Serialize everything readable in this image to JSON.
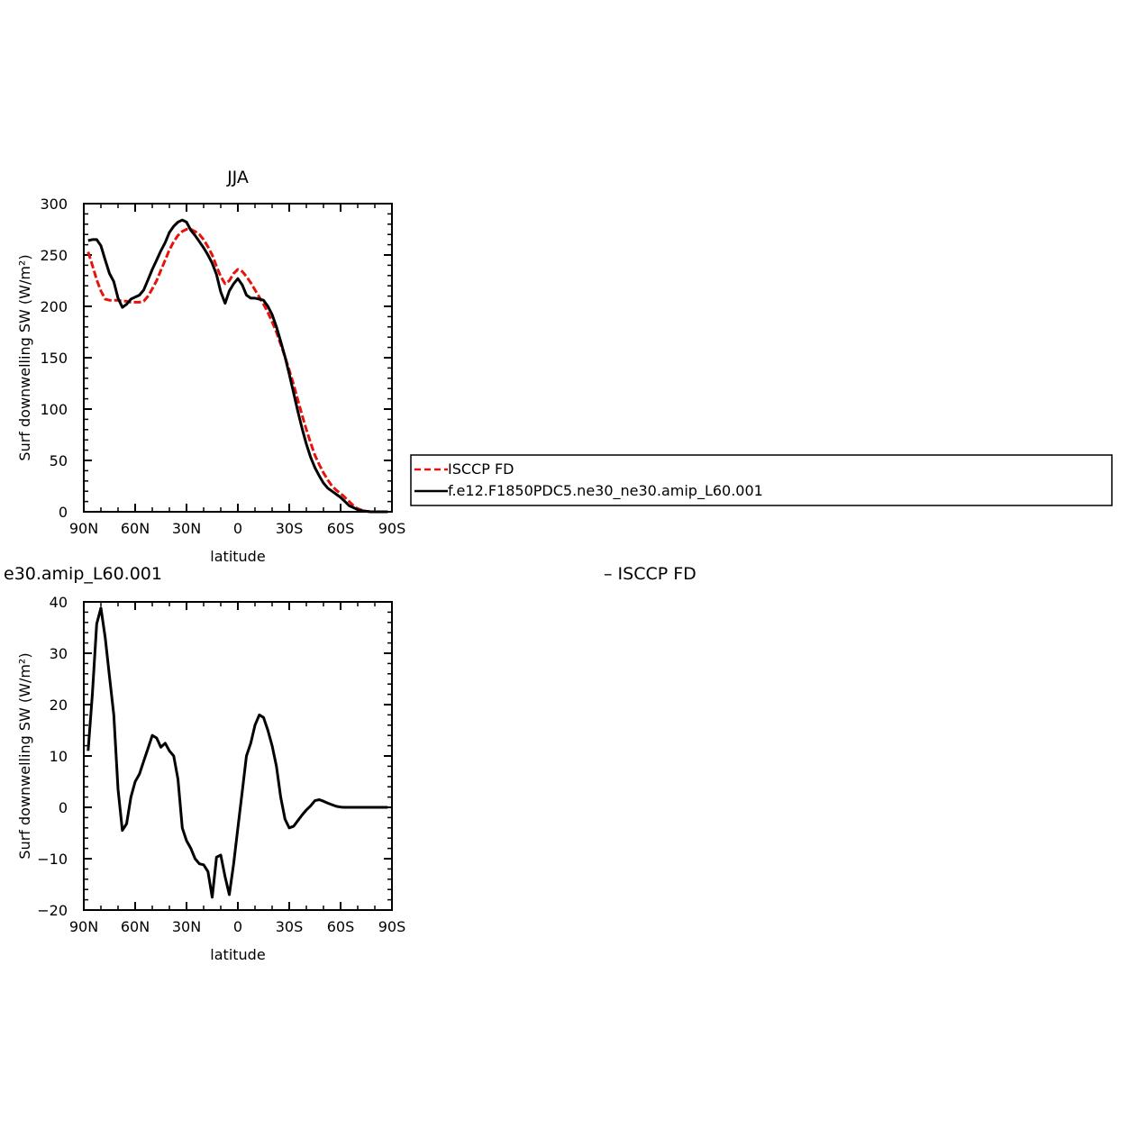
{
  "chart_data": [
    {
      "type": "line",
      "title": "JJA",
      "xlabel": "latitude",
      "ylabel": "Surf downwelling SW (W/m²)",
      "xlim": [
        90,
        -90
      ],
      "ylim": [
        0,
        300
      ],
      "xticks": [
        {
          "value": 90,
          "label": "90N"
        },
        {
          "value": 60,
          "label": "60N"
        },
        {
          "value": 30,
          "label": "30N"
        },
        {
          "value": 0,
          "label": "0"
        },
        {
          "value": -30,
          "label": "30S"
        },
        {
          "value": -60,
          "label": "60S"
        },
        {
          "value": -90,
          "label": "90S"
        }
      ],
      "yticks": [
        0,
        50,
        100,
        150,
        200,
        250,
        300
      ],
      "legend_position": "right",
      "series": [
        {
          "name": "ISCCP FD",
          "color": "#e8120c",
          "dash": "dashed",
          "points": [
            [
              87.5,
              253
            ],
            [
              85,
              240
            ],
            [
              82.5,
              226
            ],
            [
              80,
              215
            ],
            [
              77.5,
              207
            ],
            [
              75,
              206
            ],
            [
              72.5,
              206
            ],
            [
              70,
              206
            ],
            [
              67.5,
              205
            ],
            [
              65,
              205
            ],
            [
              62.5,
              204
            ],
            [
              60,
              204
            ],
            [
              57.5,
              204
            ],
            [
              55,
              205
            ],
            [
              52.5,
              210
            ],
            [
              50,
              217
            ],
            [
              47.5,
              225
            ],
            [
              45,
              235
            ],
            [
              42.5,
              245
            ],
            [
              40,
              255
            ],
            [
              37.5,
              263
            ],
            [
              35,
              269
            ],
            [
              32.5,
              273
            ],
            [
              30,
              275
            ],
            [
              27.5,
              275
            ],
            [
              25,
              273
            ],
            [
              22.5,
              270
            ],
            [
              20,
              265
            ],
            [
              17.5,
              258
            ],
            [
              15,
              250
            ],
            [
              12.5,
              239
            ],
            [
              10,
              229
            ],
            [
              7.5,
              222
            ],
            [
              5,
              225
            ],
            [
              2.5,
              232
            ],
            [
              0,
              236
            ],
            [
              -2.5,
              234
            ],
            [
              -5,
              229
            ],
            [
              -7.5,
              223
            ],
            [
              -10,
              216
            ],
            [
              -12.5,
              209
            ],
            [
              -15,
              202
            ],
            [
              -17.5,
              194
            ],
            [
              -20,
              185
            ],
            [
              -22.5,
              175
            ],
            [
              -25,
              163
            ],
            [
              -27.5,
              151
            ],
            [
              -30,
              138
            ],
            [
              -32.5,
              124
            ],
            [
              -35,
              109
            ],
            [
              -37.5,
              94
            ],
            [
              -40,
              80
            ],
            [
              -42.5,
              67
            ],
            [
              -45,
              55
            ],
            [
              -47.5,
              46
            ],
            [
              -50,
              38
            ],
            [
              -52.5,
              31
            ],
            [
              -55,
              25
            ],
            [
              -57.5,
              21
            ],
            [
              -60,
              18
            ],
            [
              -62.5,
              14
            ],
            [
              -65,
              10
            ],
            [
              -67.5,
              6
            ],
            [
              -70,
              3
            ],
            [
              -72.5,
              1.5
            ],
            [
              -75,
              0.5
            ],
            [
              -77.5,
              0
            ],
            [
              -80,
              0
            ],
            [
              -82.5,
              0
            ],
            [
              -85,
              0
            ],
            [
              -87.5,
              0
            ]
          ]
        },
        {
          "name": "f.e12.F1850PDC5.ne30_ne30.amip_L60.001",
          "color": "#000000",
          "dash": "solid",
          "points": [
            [
              87.5,
              264
            ],
            [
              85,
              265
            ],
            [
              82.5,
              265
            ],
            [
              80,
              259
            ],
            [
              77.5,
              245
            ],
            [
              75,
              232
            ],
            [
              72.5,
              224
            ],
            [
              70,
              208
            ],
            [
              67.5,
              199
            ],
            [
              65,
              202
            ],
            [
              62.5,
              207
            ],
            [
              60,
              209
            ],
            [
              57.5,
              211
            ],
            [
              55,
              216
            ],
            [
              52.5,
              226
            ],
            [
              50,
              236
            ],
            [
              47.5,
              245
            ],
            [
              45,
              254
            ],
            [
              42.5,
              262
            ],
            [
              40,
              272
            ],
            [
              37.5,
              278
            ],
            [
              35,
              282
            ],
            [
              32.5,
              284
            ],
            [
              30,
              282
            ],
            [
              27.5,
              274
            ],
            [
              25,
              269
            ],
            [
              22.5,
              263
            ],
            [
              20,
              257
            ],
            [
              17.5,
              250
            ],
            [
              15,
              242
            ],
            [
              12.5,
              231
            ],
            [
              10,
              214
            ],
            [
              7.5,
              203
            ],
            [
              5,
              215
            ],
            [
              2.5,
              222
            ],
            [
              0,
              227
            ],
            [
              -2.5,
              221
            ],
            [
              -5,
              211
            ],
            [
              -7.5,
              208
            ],
            [
              -10,
              208
            ],
            [
              -12.5,
              207
            ],
            [
              -15,
              206
            ],
            [
              -17.5,
              200
            ],
            [
              -20,
              192
            ],
            [
              -22.5,
              180
            ],
            [
              -25,
              166
            ],
            [
              -27.5,
              151
            ],
            [
              -30,
              134
            ],
            [
              -32.5,
              116
            ],
            [
              -35,
              98
            ],
            [
              -37.5,
              81
            ],
            [
              -40,
              66
            ],
            [
              -42.5,
              53
            ],
            [
              -45,
              43
            ],
            [
              -47.5,
              35
            ],
            [
              -50,
              28
            ],
            [
              -52.5,
              23
            ],
            [
              -55,
              20
            ],
            [
              -57.5,
              17
            ],
            [
              -60,
              14
            ],
            [
              -62.5,
              10
            ],
            [
              -65,
              6
            ],
            [
              -67.5,
              4
            ],
            [
              -70,
              2
            ],
            [
              -72.5,
              1
            ],
            [
              -75,
              0.5
            ],
            [
              -77.5,
              0
            ],
            [
              -80,
              0
            ],
            [
              -82.5,
              0
            ],
            [
              -85,
              0
            ],
            [
              -87.5,
              0
            ]
          ]
        }
      ]
    },
    {
      "type": "line",
      "title": "e30.amip_L60.001",
      "title_right": "– ISCCP FD",
      "xlabel": "latitude",
      "ylabel": "Surf downwelling SW (W/m²)",
      "xlim": [
        90,
        -90
      ],
      "ylim": [
        -20,
        40
      ],
      "xticks": [
        {
          "value": 90,
          "label": "90N"
        },
        {
          "value": 60,
          "label": "60N"
        },
        {
          "value": 30,
          "label": "30N"
        },
        {
          "value": 0,
          "label": "0"
        },
        {
          "value": -30,
          "label": "30S"
        },
        {
          "value": -60,
          "label": "60S"
        },
        {
          "value": -90,
          "label": "90S"
        }
      ],
      "yticks": [
        -20,
        -10,
        0,
        10,
        20,
        30,
        40
      ],
      "series": [
        {
          "color": "#000000",
          "dash": "solid",
          "points": [
            [
              87.5,
              11
            ],
            [
              85,
              22
            ],
            [
              82.5,
              35.7
            ],
            [
              80,
              38.8
            ],
            [
              77.5,
              33
            ],
            [
              75,
              25.5
            ],
            [
              72.5,
              18
            ],
            [
              70,
              3.5
            ],
            [
              67.5,
              -4.5
            ],
            [
              65,
              -3.2
            ],
            [
              62.5,
              2
            ],
            [
              60,
              5
            ],
            [
              57.5,
              6.5
            ],
            [
              55,
              9
            ],
            [
              52.5,
              11.5
            ],
            [
              50,
              14
            ],
            [
              47.5,
              13.5
            ],
            [
              45,
              11.7
            ],
            [
              42.5,
              12.5
            ],
            [
              40,
              11
            ],
            [
              37.5,
              10
            ],
            [
              35,
              5.5
            ],
            [
              32.5,
              -4
            ],
            [
              30,
              -6.5
            ],
            [
              27.5,
              -8
            ],
            [
              25,
              -10
            ],
            [
              22.5,
              -11
            ],
            [
              20,
              -11.2
            ],
            [
              17.5,
              -12.5
            ],
            [
              15,
              -17.5
            ],
            [
              12.5,
              -9.7
            ],
            [
              10,
              -9.3
            ],
            [
              7.5,
              -13.5
            ],
            [
              5,
              -17
            ],
            [
              2.5,
              -11
            ],
            [
              0,
              -4
            ],
            [
              -2.5,
              3
            ],
            [
              -5,
              10
            ],
            [
              -7.5,
              12.5
            ],
            [
              -10,
              16
            ],
            [
              -12.5,
              18
            ],
            [
              -15,
              17.5
            ],
            [
              -17.5,
              15
            ],
            [
              -20,
              12
            ],
            [
              -22.5,
              8
            ],
            [
              -25,
              2
            ],
            [
              -27.5,
              -2.3
            ],
            [
              -30,
              -4
            ],
            [
              -32.5,
              -3.7
            ],
            [
              -35,
              -2.6
            ],
            [
              -37.5,
              -1.5
            ],
            [
              -40,
              -0.5
            ],
            [
              -42.5,
              0.3
            ],
            [
              -45,
              1.3
            ],
            [
              -47.5,
              1.5
            ],
            [
              -50,
              1.2
            ],
            [
              -52.5,
              0.8
            ],
            [
              -55,
              0.5
            ],
            [
              -57.5,
              0.2
            ],
            [
              -60,
              0.05
            ],
            [
              -62.5,
              0
            ],
            [
              -65,
              0
            ],
            [
              -67.5,
              0
            ],
            [
              -70,
              0
            ],
            [
              -72.5,
              0
            ],
            [
              -75,
              0
            ],
            [
              -77.5,
              0
            ],
            [
              -80,
              0
            ],
            [
              -82.5,
              0
            ],
            [
              -85,
              0
            ],
            [
              -87.5,
              0
            ]
          ]
        }
      ]
    }
  ],
  "legend": {
    "items": [
      {
        "label": "ISCCP FD",
        "color": "#e8120c",
        "dash": "dashed"
      },
      {
        "label": "f.e12.F1850PDC5.ne30_ne30.amip_L60.001",
        "color": "#000000",
        "dash": "solid"
      }
    ]
  }
}
